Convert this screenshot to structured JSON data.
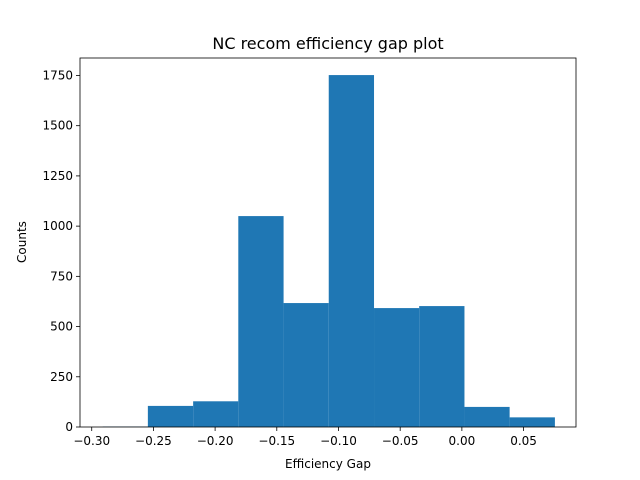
{
  "chart_data": {
    "type": "bar",
    "title": "NC recom efficiency gap plot",
    "xlabel": "Efficiency Gap",
    "ylabel": "Counts",
    "xlim": [
      -0.3095,
      0.0925
    ],
    "ylim": [
      0,
      1837
    ],
    "x_ticks": [
      -0.3,
      -0.25,
      -0.2,
      -0.15,
      -0.1,
      -0.05,
      0.0,
      0.05
    ],
    "x_tick_labels": [
      "−0.30",
      "−0.25",
      "−0.20",
      "−0.15",
      "−0.10",
      "−0.05",
      "0.00",
      "0.05"
    ],
    "y_ticks": [
      0,
      250,
      500,
      750,
      1000,
      1250,
      1500,
      1750
    ],
    "y_tick_labels": [
      "0",
      "250",
      "500",
      "750",
      "1000",
      "1250",
      "1500",
      "1750"
    ],
    "bin_edges": [
      -0.2911,
      -0.2545,
      -0.2178,
      -0.1812,
      -0.1445,
      -0.1079,
      -0.0712,
      -0.0346,
      0.0021,
      0.0387,
      0.0754
    ],
    "values": [
      2,
      105,
      128,
      1050,
      617,
      1752,
      592,
      602,
      100,
      48
    ],
    "color": "#1f77b4",
    "grid": false,
    "legend": "none"
  }
}
